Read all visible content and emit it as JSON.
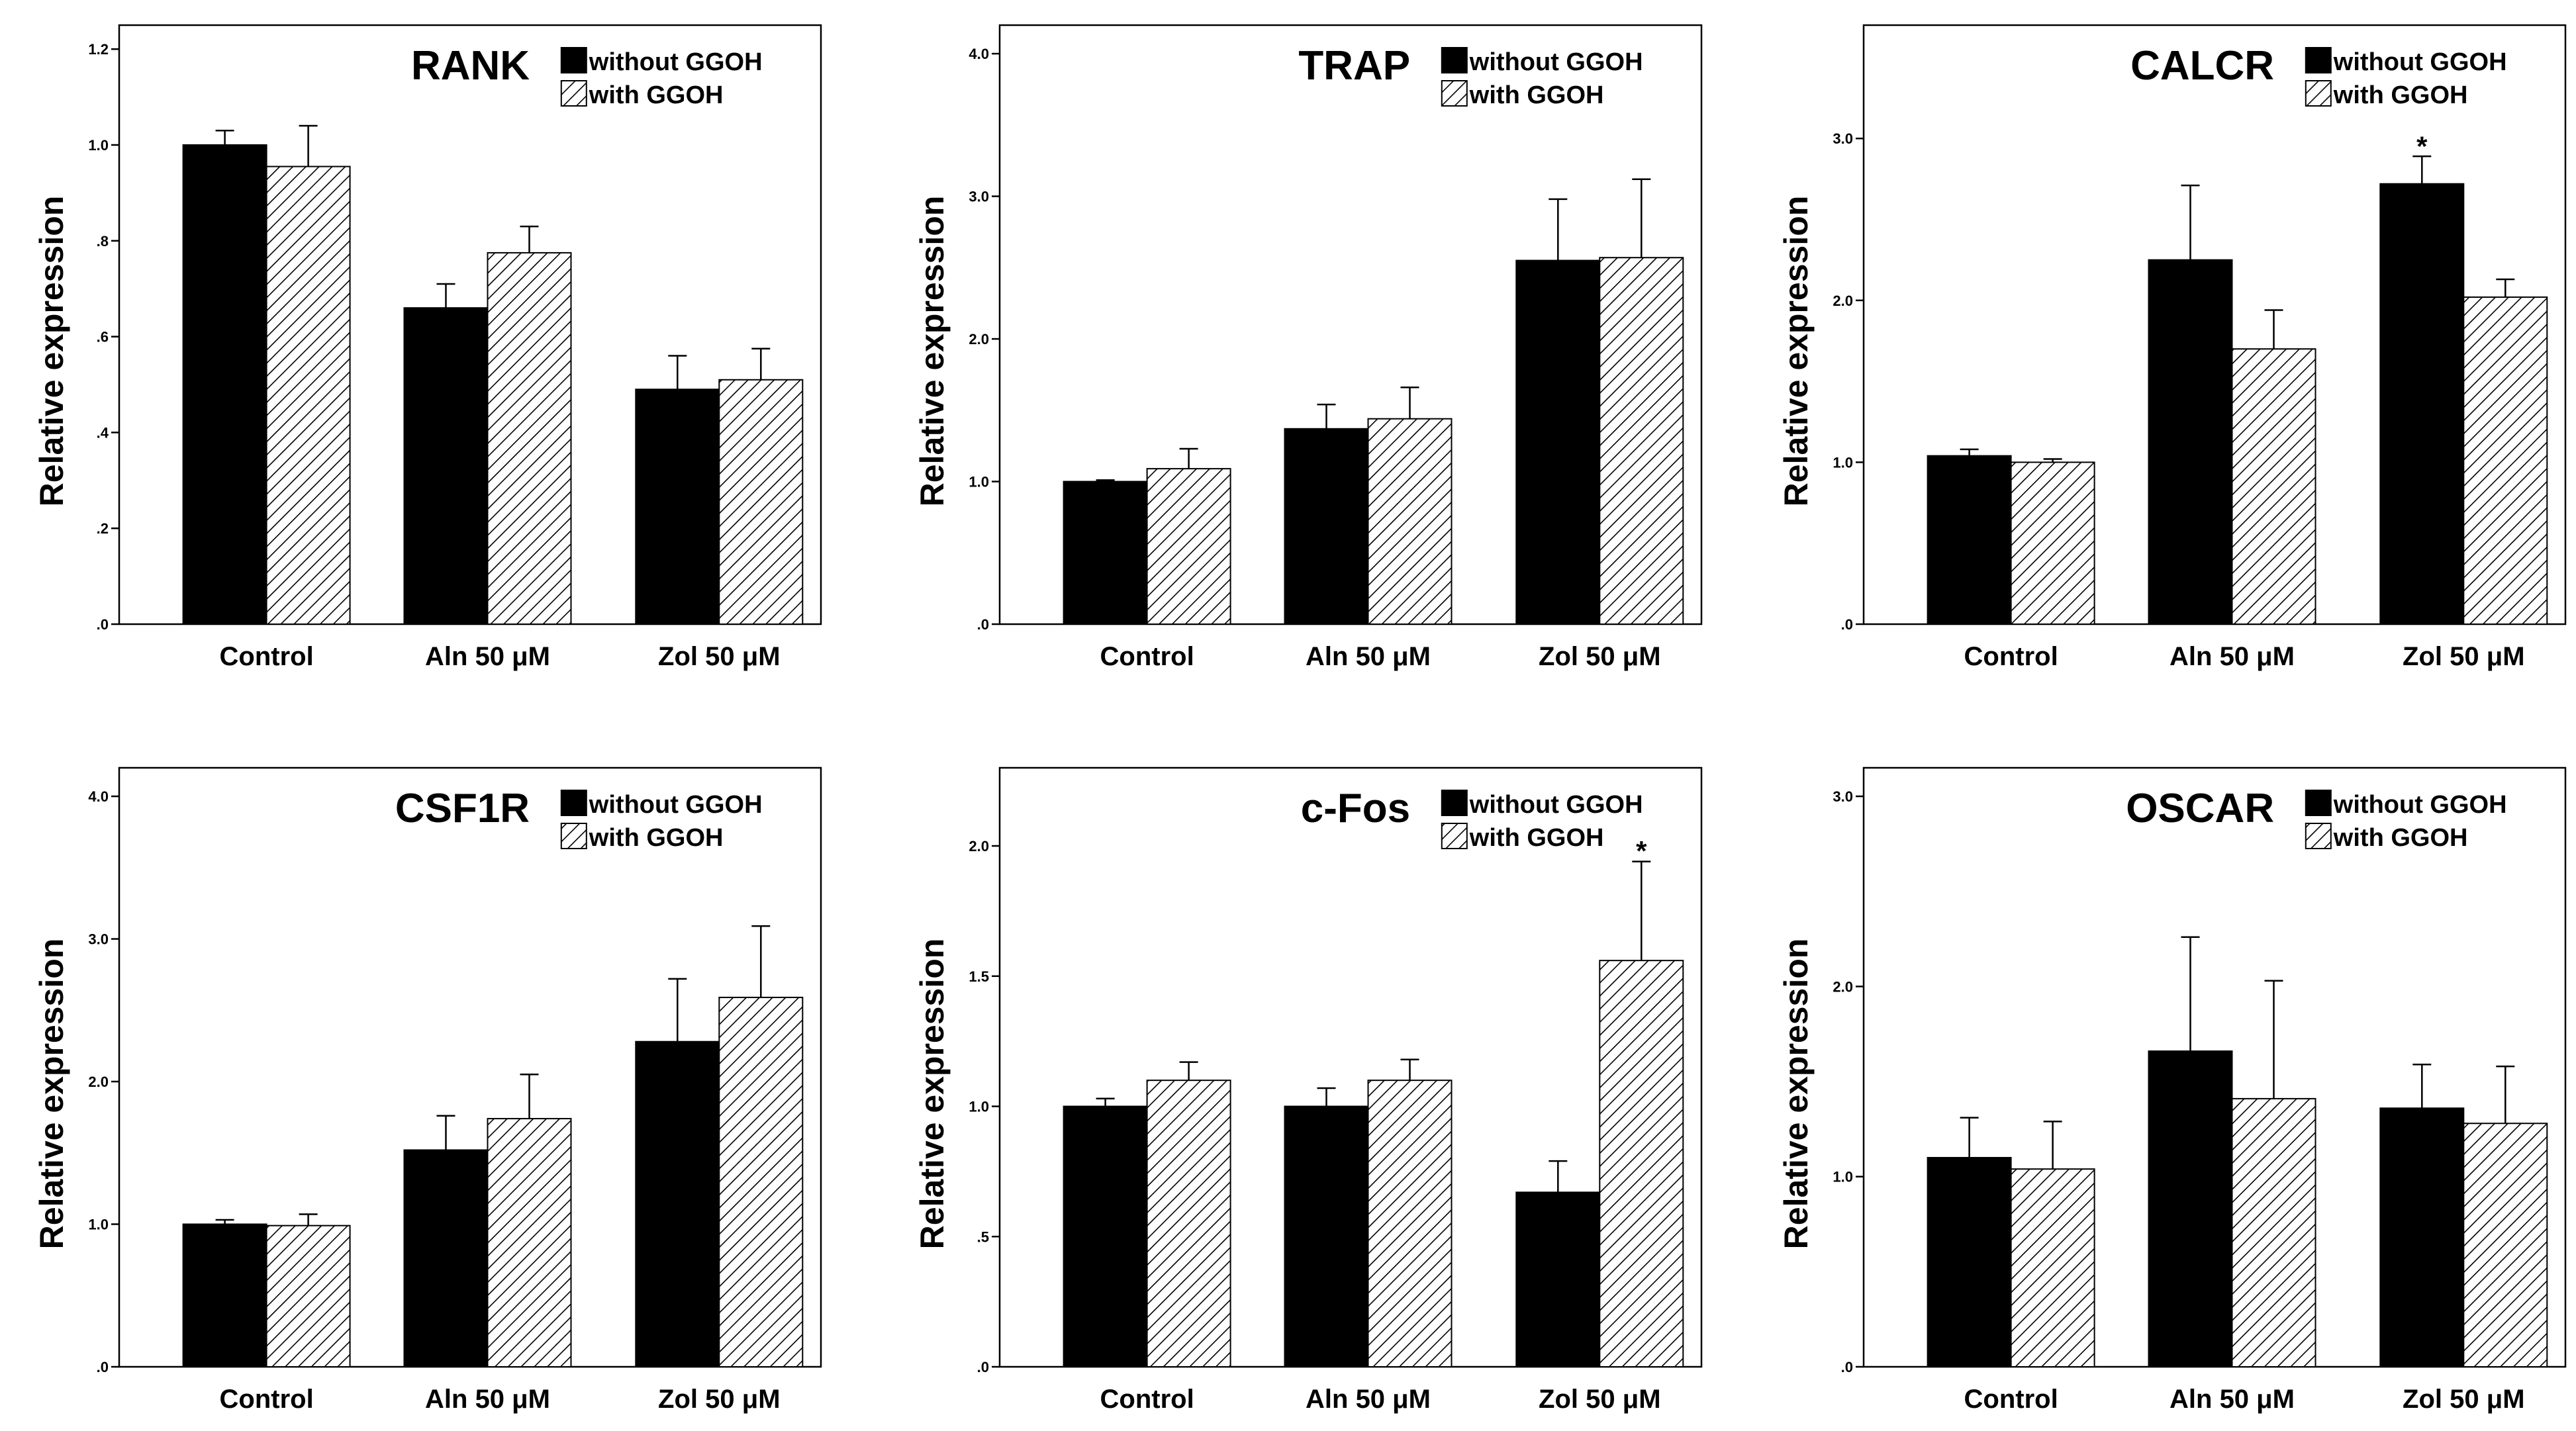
{
  "figure": {
    "background": "#ffffff",
    "bar_color_without": "#000000",
    "hatch_color": "#000000"
  },
  "chart_data": [
    {
      "type": "bar",
      "title": "RANK",
      "ylabel": "Relative expression",
      "categories": [
        "Control",
        "Aln 50 μM",
        "Zol 50 μM"
      ],
      "ylim": [
        0,
        1.25
      ],
      "yticks": [
        0,
        0.2,
        0.4,
        0.6,
        0.8,
        1.0,
        1.2
      ],
      "yticklabels": [
        ".0",
        ".2",
        ".4",
        ".6",
        ".8",
        "1.0",
        "1.2"
      ],
      "legend": [
        "without GGOH",
        "with GGOH"
      ],
      "series": [
        {
          "name": "without GGOH",
          "values": [
            1.0,
            0.66,
            0.49
          ],
          "errors": [
            0.03,
            0.05,
            0.07
          ]
        },
        {
          "name": "with GGOH",
          "values": [
            0.955,
            0.775,
            0.51
          ],
          "errors": [
            0.085,
            0.055,
            0.065
          ]
        }
      ],
      "annotations": []
    },
    {
      "type": "bar",
      "title": "TRAP",
      "ylabel": "Relative expression",
      "categories": [
        "Control",
        "Aln 50 μM",
        "Zol 50 μM"
      ],
      "ylim": [
        0,
        4.2
      ],
      "yticks": [
        0,
        1,
        2,
        3,
        4
      ],
      "yticklabels": [
        ".0",
        "1.0",
        "2.0",
        "3.0",
        "4.0"
      ],
      "legend": [
        "without GGOH",
        "with GGOH"
      ],
      "series": [
        {
          "name": "without GGOH",
          "values": [
            1.0,
            1.37,
            2.55
          ],
          "errors": [
            0.01,
            0.17,
            0.43
          ]
        },
        {
          "name": "with GGOH",
          "values": [
            1.09,
            1.44,
            2.57
          ],
          "errors": [
            0.14,
            0.22,
            0.55
          ]
        }
      ],
      "annotations": []
    },
    {
      "type": "bar",
      "title": "CALCR",
      "ylabel": "Relative expression",
      "categories": [
        "Control",
        "Aln 50 μM",
        "Zol 50 μM"
      ],
      "ylim": [
        0,
        3.7
      ],
      "yticks": [
        0,
        1,
        2,
        3
      ],
      "yticklabels": [
        ".0",
        "1.0",
        "2.0",
        "3.0"
      ],
      "legend": [
        "without GGOH",
        "with GGOH"
      ],
      "series": [
        {
          "name": "without GGOH",
          "values": [
            1.04,
            2.25,
            2.72
          ],
          "errors": [
            0.04,
            0.46,
            0.17
          ]
        },
        {
          "name": "with GGOH",
          "values": [
            1.0,
            1.7,
            2.02
          ],
          "errors": [
            0.02,
            0.24,
            0.11
          ]
        }
      ],
      "annotations": [
        {
          "text": "*",
          "category": 2,
          "series": 0,
          "y": 2.95
        }
      ]
    },
    {
      "type": "bar",
      "title": "CSF1R",
      "ylabel": "Relative expression",
      "categories": [
        "Control",
        "Aln 50 μM",
        "Zol 50 μM"
      ],
      "ylim": [
        0,
        4.2
      ],
      "yticks": [
        0,
        1,
        2,
        3,
        4
      ],
      "yticklabels": [
        ".0",
        "1.0",
        "2.0",
        "3.0",
        "4.0"
      ],
      "legend": [
        "without GGOH",
        "with GGOH"
      ],
      "series": [
        {
          "name": "without GGOH",
          "values": [
            1.0,
            1.52,
            2.28
          ],
          "errors": [
            0.03,
            0.24,
            0.44
          ]
        },
        {
          "name": "with GGOH",
          "values": [
            0.99,
            1.74,
            2.59
          ],
          "errors": [
            0.08,
            0.31,
            0.5
          ]
        }
      ],
      "annotations": []
    },
    {
      "type": "bar",
      "title": "c-Fos",
      "ylabel": "Relative expression",
      "categories": [
        "Control",
        "Aln 50 μM",
        "Zol 50 μM"
      ],
      "ylim": [
        0,
        2.3
      ],
      "yticks": [
        0,
        0.5,
        1.0,
        1.5,
        2.0
      ],
      "yticklabels": [
        ".0",
        ".5",
        "1.0",
        "1.5",
        "2.0"
      ],
      "legend": [
        "without GGOH",
        "with GGOH"
      ],
      "series": [
        {
          "name": "without GGOH",
          "values": [
            1.0,
            1.0,
            0.67
          ],
          "errors": [
            0.03,
            0.07,
            0.12
          ]
        },
        {
          "name": "with GGOH",
          "values": [
            1.1,
            1.1,
            1.56
          ],
          "errors": [
            0.07,
            0.08,
            0.38
          ]
        }
      ],
      "annotations": [
        {
          "text": "*",
          "category": 2,
          "series": 1,
          "y": 1.98
        }
      ]
    },
    {
      "type": "bar",
      "title": "OSCAR",
      "ylabel": "Relative expression",
      "categories": [
        "Control",
        "Aln 50 μM",
        "Zol 50 μM"
      ],
      "ylim": [
        0,
        3.15
      ],
      "yticks": [
        0,
        1,
        2,
        3
      ],
      "yticklabels": [
        ".0",
        "1.0",
        "2.0",
        "3.0"
      ],
      "legend": [
        "without GGOH",
        "with GGOH"
      ],
      "series": [
        {
          "name": "without GGOH",
          "values": [
            1.1,
            1.66,
            1.36
          ],
          "errors": [
            0.21,
            0.6,
            0.23
          ]
        },
        {
          "name": "with GGOH",
          "values": [
            1.04,
            1.41,
            1.28
          ],
          "errors": [
            0.25,
            0.62,
            0.3
          ]
        }
      ],
      "annotations": []
    }
  ]
}
